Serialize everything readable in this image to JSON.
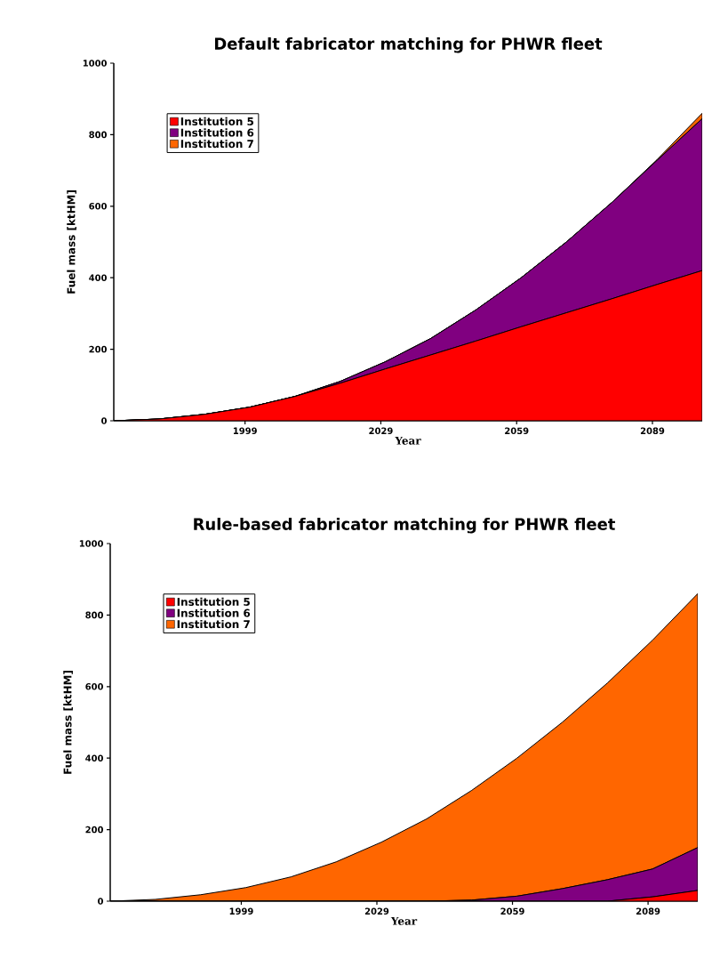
{
  "chart_data": [
    {
      "type": "area",
      "title": "Default fabricator matching for PHWR fleet",
      "xlabel": "Year",
      "ylabel": "Fuel mass [ktHM]",
      "stacked": true,
      "legend": "top left",
      "x": [
        1970,
        1980,
        1990,
        2000,
        2010,
        2020,
        2030,
        2040,
        2050,
        2060,
        2070,
        2080,
        2090,
        2100
      ],
      "xlim": [
        1970,
        2100
      ],
      "xticks": [
        1999,
        2029,
        2059,
        2089
      ],
      "ylim": [
        0,
        1000
      ],
      "yticks": [
        0,
        200,
        400,
        600,
        800,
        1000
      ],
      "series": [
        {
          "name": "Institution 5",
          "color": "#ff0000",
          "values": [
            0,
            5,
            18,
            38,
            68,
            105,
            145,
            184,
            223,
            263,
            302,
            341,
            381,
            420
          ]
        },
        {
          "name": "Institution 6",
          "color": "#800080",
          "values": [
            0,
            0,
            0,
            0,
            0,
            5,
            20,
            46,
            87,
            137,
            198,
            269,
            347,
            425
          ]
        },
        {
          "name": "Institution 7",
          "color": "#ff6600",
          "values": [
            0,
            0,
            0,
            0,
            0,
            0,
            0,
            0,
            0,
            0,
            0,
            0,
            2,
            15
          ]
        }
      ]
    },
    {
      "type": "area",
      "title": "Rule-based fabricator matching for PHWR fleet",
      "xlabel": "Year",
      "ylabel": "Fuel mass [ktHM]",
      "stacked": true,
      "legend": "top left",
      "x": [
        1970,
        1980,
        1990,
        2000,
        2010,
        2020,
        2030,
        2040,
        2050,
        2060,
        2070,
        2080,
        2090,
        2100
      ],
      "xlim": [
        1970,
        2100
      ],
      "xticks": [
        1999,
        2029,
        2059,
        2089
      ],
      "ylim": [
        0,
        1000
      ],
      "yticks": [
        0,
        200,
        400,
        600,
        800,
        1000
      ],
      "series": [
        {
          "name": "Institution 5",
          "color": "#ff0000",
          "values": [
            0,
            0,
            0,
            0,
            0,
            0,
            0,
            0,
            0,
            0,
            0,
            0,
            12,
            30
          ]
        },
        {
          "name": "Institution 6",
          "color": "#800080",
          "values": [
            0,
            0,
            0,
            0,
            0,
            0,
            0,
            0,
            3,
            14,
            35,
            60,
            78,
            120
          ]
        },
        {
          "name": "Institution 7",
          "color": "#ff6600",
          "values": [
            0,
            5,
            18,
            38,
            68,
            110,
            165,
            230,
            307,
            386,
            465,
            550,
            640,
            710
          ]
        }
      ]
    }
  ]
}
